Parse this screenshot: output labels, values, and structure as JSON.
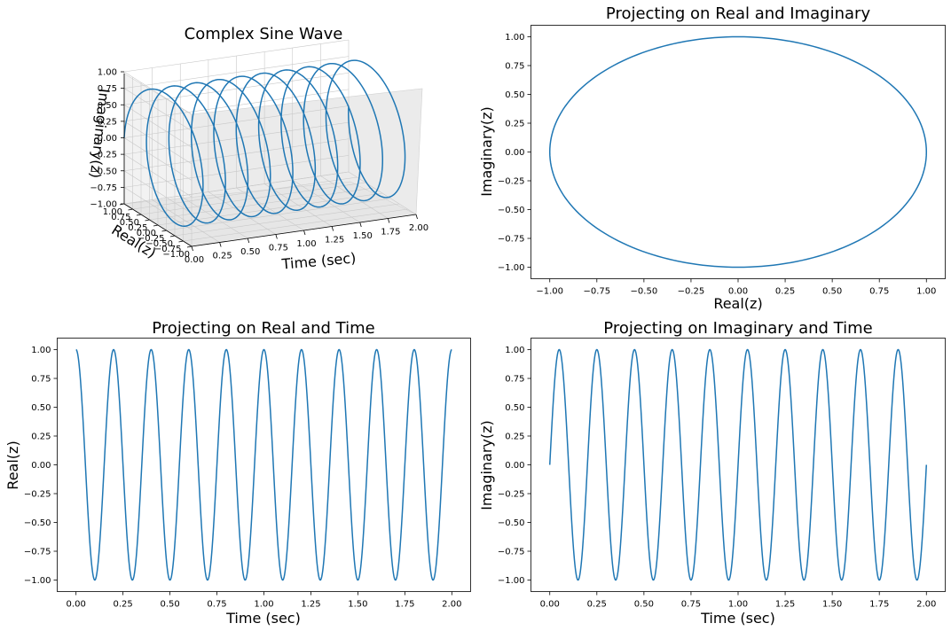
{
  "chart_data": [
    {
      "type": "line3d",
      "title": "Complex Sine Wave",
      "xlabel": "Time (sec)",
      "ylabel": "Real(z)",
      "zlabel": "Imaginary(z)",
      "series": [
        {
          "function": "z = exp(i*2*pi*5*t)",
          "t_range": [
            0,
            2
          ],
          "frequency_hz": 5
        }
      ],
      "xticks": [
        "0.00",
        "0.25",
        "0.50",
        "0.75",
        "1.00",
        "1.25",
        "1.50",
        "1.75",
        "2.00"
      ],
      "yticks": [
        "1.00",
        "0.75",
        "0.50",
        "0.25",
        "0.00",
        "−0.25",
        "−0.50",
        "−0.75",
        "−1.00"
      ],
      "zticks": [
        "1.00",
        "0.75",
        "0.50",
        "0.25",
        "0.00",
        "−0.25",
        "−0.50",
        "−0.75",
        "−1.00"
      ],
      "xlim": [
        0,
        2
      ],
      "ylim": [
        -1,
        1
      ],
      "zlim": [
        -1,
        1
      ],
      "color": "#1f77b4",
      "grid": true
    },
    {
      "type": "line",
      "title": "Projecting on Real and Imaginary",
      "xlabel": "Real(z)",
      "ylabel": "Imaginary(z)",
      "series": [
        {
          "x_expr": "cos(2*pi*5*t)",
          "y_expr": "sin(2*pi*5*t)",
          "t_range": [
            0,
            2
          ]
        }
      ],
      "xlim": [
        -1.1,
        1.1
      ],
      "ylim": [
        -1.1,
        1.1
      ],
      "xticks": [
        "−1.00",
        "−0.75",
        "−0.50",
        "−0.25",
        "0.00",
        "0.25",
        "0.50",
        "0.75",
        "1.00"
      ],
      "yticks": [
        "1.00",
        "0.75",
        "0.50",
        "0.25",
        "0.00",
        "−0.25",
        "−0.50",
        "−0.75",
        "−1.00"
      ],
      "color": "#1f77b4"
    },
    {
      "type": "line",
      "title": "Projecting on Real and Time",
      "xlabel": "Time (sec)",
      "ylabel": "Real(z)",
      "series": [
        {
          "y_expr": "cos(2*pi*5*t)",
          "x_range": [
            0,
            2
          ]
        }
      ],
      "xlim": [
        -0.1,
        2.1
      ],
      "ylim": [
        -1.1,
        1.1
      ],
      "xticks": [
        "0.00",
        "0.25",
        "0.50",
        "0.75",
        "1.00",
        "1.25",
        "1.50",
        "1.75",
        "2.00"
      ],
      "yticks": [
        "1.00",
        "0.75",
        "0.50",
        "0.25",
        "0.00",
        "−0.25",
        "−0.50",
        "−0.75",
        "−1.00"
      ],
      "color": "#1f77b4"
    },
    {
      "type": "line",
      "title": "Projecting on Imaginary and Time",
      "xlabel": "Time (sec)",
      "ylabel": "Imaginary(z)",
      "series": [
        {
          "y_expr": "sin(2*pi*5*t)",
          "x_range": [
            0,
            2
          ]
        }
      ],
      "xlim": [
        -0.1,
        2.1
      ],
      "ylim": [
        -1.1,
        1.1
      ],
      "xticks": [
        "0.00",
        "0.25",
        "0.50",
        "0.75",
        "1.00",
        "1.25",
        "1.50",
        "1.75",
        "2.00"
      ],
      "yticks": [
        "1.00",
        "0.75",
        "0.50",
        "0.25",
        "0.00",
        "−0.25",
        "−0.50",
        "−0.75",
        "−1.00"
      ],
      "color": "#1f77b4"
    }
  ]
}
